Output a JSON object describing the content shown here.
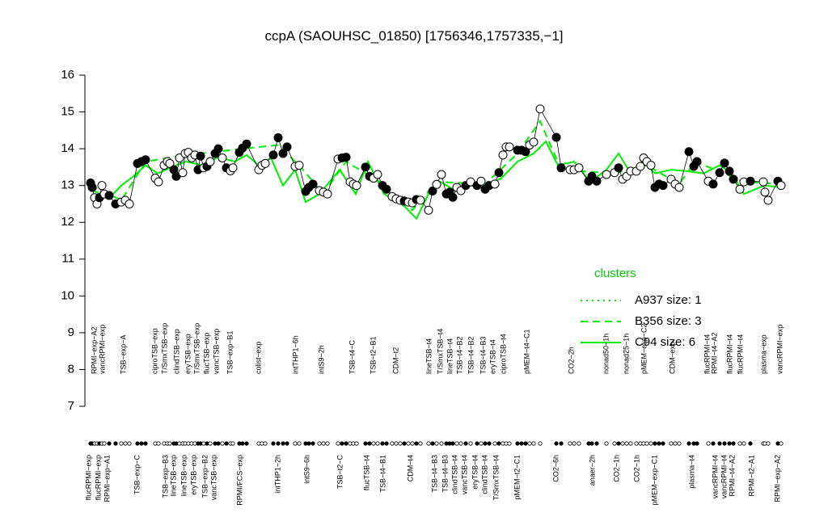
{
  "chart_data": {
    "type": "scatter",
    "title": "ccpA (SAOUHSC_01850) [1756346,1757335,−1]",
    "xlim": [
      0,
      875
    ],
    "ylim": [
      7,
      16
    ],
    "yticks": [
      7,
      8,
      9,
      10,
      11,
      12,
      13,
      14,
      15,
      16
    ],
    "point_color": "#000000",
    "points": [
      {
        "x": 12,
        "y": 13.07,
        "filled": true
      },
      {
        "x": 14,
        "y": 12.95,
        "filled": true
      },
      {
        "x": 17,
        "y": 12.67,
        "filled": false
      },
      {
        "x": 20,
        "y": 12.5,
        "filled": false
      },
      {
        "x": 23,
        "y": 12.67,
        "filled": true
      },
      {
        "x": 26,
        "y": 13.0,
        "filled": false
      },
      {
        "x": 29,
        "y": 12.77,
        "filled": false
      },
      {
        "x": 35,
        "y": 12.73,
        "filled": true
      },
      {
        "x": 43,
        "y": 12.5,
        "filled": true
      },
      {
        "x": 50,
        "y": 12.55,
        "filled": false
      },
      {
        "x": 55,
        "y": 12.6,
        "filled": false
      },
      {
        "x": 60,
        "y": 12.5,
        "filled": false
      },
      {
        "x": 70,
        "y": 13.6,
        "filled": true
      },
      {
        "x": 75,
        "y": 13.65,
        "filled": true
      },
      {
        "x": 80,
        "y": 13.7,
        "filled": true
      },
      {
        "x": 92,
        "y": 13.2,
        "filled": false
      },
      {
        "x": 96,
        "y": 13.1,
        "filled": false
      },
      {
        "x": 103,
        "y": 13.55,
        "filled": false
      },
      {
        "x": 107,
        "y": 13.65,
        "filled": false
      },
      {
        "x": 110,
        "y": 13.6,
        "filled": false
      },
      {
        "x": 115,
        "y": 13.43,
        "filled": true
      },
      {
        "x": 118,
        "y": 13.25,
        "filled": true
      },
      {
        "x": 122,
        "y": 13.75,
        "filled": false
      },
      {
        "x": 126,
        "y": 13.35,
        "filled": false
      },
      {
        "x": 129,
        "y": 13.87,
        "filled": false
      },
      {
        "x": 133,
        "y": 13.9,
        "filled": false
      },
      {
        "x": 137,
        "y": 13.75,
        "filled": false
      },
      {
        "x": 141,
        "y": 13.83,
        "filled": false
      },
      {
        "x": 145,
        "y": 13.43,
        "filled": true
      },
      {
        "x": 148,
        "y": 13.8,
        "filled": true
      },
      {
        "x": 152,
        "y": 13.48,
        "filled": false
      },
      {
        "x": 156,
        "y": 13.52,
        "filled": true
      },
      {
        "x": 160,
        "y": 13.65,
        "filled": false
      },
      {
        "x": 166,
        "y": 13.87,
        "filled": true
      },
      {
        "x": 170,
        "y": 14.0,
        "filled": true
      },
      {
        "x": 175,
        "y": 13.75,
        "filled": false
      },
      {
        "x": 180,
        "y": 13.48,
        "filled": true
      },
      {
        "x": 185,
        "y": 13.4,
        "filled": false
      },
      {
        "x": 188,
        "y": 13.48,
        "filled": false
      },
      {
        "x": 196,
        "y": 13.9,
        "filled": true
      },
      {
        "x": 200,
        "y": 14.02,
        "filled": true
      },
      {
        "x": 205,
        "y": 14.13,
        "filled": true
      },
      {
        "x": 220,
        "y": 13.43,
        "filled": false
      },
      {
        "x": 224,
        "y": 13.55,
        "filled": false
      },
      {
        "x": 228,
        "y": 13.6,
        "filled": false
      },
      {
        "x": 238,
        "y": 13.83,
        "filled": true
      },
      {
        "x": 244,
        "y": 14.3,
        "filled": true
      },
      {
        "x": 250,
        "y": 13.87,
        "filled": true
      },
      {
        "x": 255,
        "y": 14.05,
        "filled": true
      },
      {
        "x": 265,
        "y": 13.52,
        "filled": false
      },
      {
        "x": 270,
        "y": 13.55,
        "filled": false
      },
      {
        "x": 278,
        "y": 12.84,
        "filled": true
      },
      {
        "x": 282,
        "y": 12.95,
        "filled": true
      },
      {
        "x": 287,
        "y": 13.04,
        "filled": true
      },
      {
        "x": 295,
        "y": 12.86,
        "filled": false
      },
      {
        "x": 300,
        "y": 12.82,
        "filled": false
      },
      {
        "x": 305,
        "y": 12.77,
        "filled": false
      },
      {
        "x": 318,
        "y": 13.72,
        "filled": false
      },
      {
        "x": 323,
        "y": 13.75,
        "filled": true
      },
      {
        "x": 328,
        "y": 13.77,
        "filled": true
      },
      {
        "x": 333,
        "y": 13.1,
        "filled": false
      },
      {
        "x": 337,
        "y": 13.04,
        "filled": false
      },
      {
        "x": 341,
        "y": 13.0,
        "filled": false
      },
      {
        "x": 352,
        "y": 13.5,
        "filled": true
      },
      {
        "x": 357,
        "y": 13.25,
        "filled": true
      },
      {
        "x": 362,
        "y": 13.2,
        "filled": false
      },
      {
        "x": 367,
        "y": 13.3,
        "filled": false
      },
      {
        "x": 373,
        "y": 13.0,
        "filled": true
      },
      {
        "x": 378,
        "y": 12.9,
        "filled": true
      },
      {
        "x": 385,
        "y": 12.7,
        "filled": false
      },
      {
        "x": 390,
        "y": 12.64,
        "filled": false
      },
      {
        "x": 395,
        "y": 12.6,
        "filled": false
      },
      {
        "x": 400,
        "y": 12.58,
        "filled": true
      },
      {
        "x": 405,
        "y": 12.55,
        "filled": false
      },
      {
        "x": 410,
        "y": 12.53,
        "filled": false
      },
      {
        "x": 415,
        "y": 12.62,
        "filled": true
      },
      {
        "x": 420,
        "y": 12.6,
        "filled": false
      },
      {
        "x": 430,
        "y": 12.33,
        "filled": false
      },
      {
        "x": 435,
        "y": 12.85,
        "filled": true
      },
      {
        "x": 440,
        "y": 13.03,
        "filled": false
      },
      {
        "x": 446,
        "y": 13.3,
        "filled": false
      },
      {
        "x": 452,
        "y": 12.77,
        "filled": true
      },
      {
        "x": 456,
        "y": 12.82,
        "filled": true
      },
      {
        "x": 460,
        "y": 12.68,
        "filled": true
      },
      {
        "x": 465,
        "y": 12.95,
        "filled": false
      },
      {
        "x": 470,
        "y": 12.86,
        "filled": false
      },
      {
        "x": 476,
        "y": 13.0,
        "filled": true
      },
      {
        "x": 482,
        "y": 13.1,
        "filled": false
      },
      {
        "x": 490,
        "y": 13.0,
        "filled": true
      },
      {
        "x": 495,
        "y": 13.12,
        "filled": false
      },
      {
        "x": 500,
        "y": 12.9,
        "filled": true
      },
      {
        "x": 505,
        "y": 13.0,
        "filled": true
      },
      {
        "x": 512,
        "y": 13.04,
        "filled": false
      },
      {
        "x": 517,
        "y": 13.35,
        "filled": true
      },
      {
        "x": 522,
        "y": 13.83,
        "filled": false
      },
      {
        "x": 526,
        "y": 14.05,
        "filled": false
      },
      {
        "x": 530,
        "y": 14.05,
        "filled": false
      },
      {
        "x": 540,
        "y": 13.96,
        "filled": true
      },
      {
        "x": 545,
        "y": 13.96,
        "filled": true
      },
      {
        "x": 550,
        "y": 13.92,
        "filled": true
      },
      {
        "x": 555,
        "y": 14.1,
        "filled": false
      },
      {
        "x": 560,
        "y": 14.18,
        "filled": false
      },
      {
        "x": 568,
        "y": 15.08,
        "filled": false
      },
      {
        "x": 588,
        "y": 14.31,
        "filled": true
      },
      {
        "x": 594,
        "y": 13.48,
        "filled": true
      },
      {
        "x": 605,
        "y": 13.43,
        "filled": false
      },
      {
        "x": 610,
        "y": 13.43,
        "filled": false
      },
      {
        "x": 616,
        "y": 13.48,
        "filled": false
      },
      {
        "x": 628,
        "y": 13.12,
        "filled": true
      },
      {
        "x": 632,
        "y": 13.25,
        "filled": true
      },
      {
        "x": 638,
        "y": 13.12,
        "filled": true
      },
      {
        "x": 650,
        "y": 13.3,
        "filled": false
      },
      {
        "x": 660,
        "y": 13.35,
        "filled": false
      },
      {
        "x": 665,
        "y": 13.48,
        "filled": true
      },
      {
        "x": 670,
        "y": 13.17,
        "filled": false
      },
      {
        "x": 675,
        "y": 13.25,
        "filled": false
      },
      {
        "x": 680,
        "y": 13.39,
        "filled": false
      },
      {
        "x": 687,
        "y": 13.39,
        "filled": false
      },
      {
        "x": 692,
        "y": 13.52,
        "filled": false
      },
      {
        "x": 696,
        "y": 13.75,
        "filled": false
      },
      {
        "x": 700,
        "y": 13.65,
        "filled": false
      },
      {
        "x": 705,
        "y": 13.55,
        "filled": false
      },
      {
        "x": 710,
        "y": 12.95,
        "filled": true
      },
      {
        "x": 715,
        "y": 13.04,
        "filled": true
      },
      {
        "x": 720,
        "y": 13.0,
        "filled": true
      },
      {
        "x": 730,
        "y": 13.17,
        "filled": false
      },
      {
        "x": 735,
        "y": 13.04,
        "filled": false
      },
      {
        "x": 740,
        "y": 12.95,
        "filled": false
      },
      {
        "x": 752,
        "y": 13.92,
        "filled": true
      },
      {
        "x": 758,
        "y": 13.52,
        "filled": true
      },
      {
        "x": 762,
        "y": 13.65,
        "filled": true
      },
      {
        "x": 776,
        "y": 13.12,
        "filled": false
      },
      {
        "x": 782,
        "y": 13.04,
        "filled": true
      },
      {
        "x": 790,
        "y": 13.35,
        "filled": true
      },
      {
        "x": 796,
        "y": 13.61,
        "filled": true
      },
      {
        "x": 802,
        "y": 13.39,
        "filled": true
      },
      {
        "x": 807,
        "y": 13.17,
        "filled": true
      },
      {
        "x": 815,
        "y": 12.9,
        "filled": false
      },
      {
        "x": 820,
        "y": 13.1,
        "filled": false
      },
      {
        "x": 828,
        "y": 13.12,
        "filled": true
      },
      {
        "x": 844,
        "y": 13.1,
        "filled": false
      },
      {
        "x": 846,
        "y": 12.82,
        "filled": false
      },
      {
        "x": 850,
        "y": 12.6,
        "filled": false
      },
      {
        "x": 862,
        "y": 13.12,
        "filled": true
      },
      {
        "x": 866,
        "y": 13.0,
        "filled": false
      }
    ],
    "legend_title": "clusters",
    "lines": [
      {
        "name": "A937 size: 1",
        "color": "#00ee00",
        "style": "dotted"
      },
      {
        "name": "B356 size: 3",
        "color": "#00ee00",
        "style": "dashed",
        "x": [
          12,
          50,
          80,
          130,
          200,
          244,
          270,
          300,
          328,
          370,
          410,
          440,
          500,
          540,
          568,
          594,
          660,
          700,
          740,
          760,
          820,
          865
        ],
        "y": [
          13.0,
          12.6,
          13.65,
          13.83,
          14.0,
          14.1,
          13.55,
          12.77,
          13.65,
          13.1,
          12.33,
          13.1,
          13.04,
          13.87,
          14.75,
          13.43,
          13.33,
          13.55,
          13.04,
          13.65,
          13.1,
          13.04
        ]
      },
      {
        "name": "C94 size: 6",
        "color": "#00ee00",
        "style": "solid",
        "x": [
          12,
          35,
          50,
          65,
          80,
          95,
          110,
          130,
          150,
          170,
          190,
          205,
          220,
          235,
          250,
          265,
          278,
          295,
          320,
          340,
          355,
          375,
          400,
          415,
          430,
          445,
          460,
          480,
          500,
          520,
          540,
          560,
          575,
          590,
          610,
          630,
          650,
          665,
          680,
          695,
          710,
          730,
          750,
          770,
          790,
          805,
          820,
          845,
          865
        ],
        "y": [
          12.9,
          12.65,
          13.0,
          13.25,
          13.55,
          13.33,
          13.48,
          13.65,
          13.55,
          13.77,
          13.65,
          13.83,
          13.55,
          13.75,
          13.0,
          13.43,
          12.55,
          12.77,
          13.43,
          12.77,
          13.65,
          12.77,
          12.44,
          12.1,
          12.77,
          13.1,
          12.9,
          13.0,
          12.95,
          13.2,
          13.65,
          13.87,
          14.2,
          13.55,
          13.65,
          13.1,
          13.43,
          13.87,
          13.33,
          13.65,
          13.33,
          13.43,
          13.39,
          13.33,
          13.55,
          13.33,
          12.77,
          13.0,
          12.95
        ]
      }
    ],
    "top_labels": [
      {
        "x": 17,
        "text": "RPMI−exp−A2"
      },
      {
        "x": 27,
        "text": "vancRPMI−exp"
      },
      {
        "x": 53,
        "text": "TSB−exp−A"
      },
      {
        "x": 92,
        "text": "ciproTSB−exp"
      },
      {
        "x": 104,
        "text": "T/SmxTSB−exp"
      },
      {
        "x": 119,
        "text": "clindTSB−exp"
      },
      {
        "x": 133,
        "text": "eryTSB−exp"
      },
      {
        "x": 144,
        "text": "T/SmxTSB−exp"
      },
      {
        "x": 156,
        "text": "flucTSB−exp"
      },
      {
        "x": 168,
        "text": "vancTSB−exp"
      },
      {
        "x": 185,
        "text": "TSB−exp−B1"
      },
      {
        "x": 220,
        "text": "colist−exp"
      },
      {
        "x": 266,
        "text": "intTHP1−6h"
      },
      {
        "x": 298,
        "text": "intS9−2h"
      },
      {
        "x": 336,
        "text": "TSB−t4−C"
      },
      {
        "x": 362,
        "text": "TSB−t2−B1"
      },
      {
        "x": 390,
        "text": "CDM−t2"
      },
      {
        "x": 431,
        "text": "lineTSB−t4"
      },
      {
        "x": 445,
        "text": "T/SmxTSB−t4"
      },
      {
        "x": 457,
        "text": "lineTSB−t4"
      },
      {
        "x": 469,
        "text": "TSB−t4−B2"
      },
      {
        "x": 483,
        "text": "TSB−t4−B2"
      },
      {
        "x": 498,
        "text": "TSB−t4−B3"
      },
      {
        "x": 510,
        "text": "eryTSB−t4"
      },
      {
        "x": 523,
        "text": "ciproTSB−t4"
      },
      {
        "x": 552,
        "text": "pMEM−t4−C1"
      },
      {
        "x": 607,
        "text": "CO2−2h"
      },
      {
        "x": 650,
        "text": "nonad50−1h"
      },
      {
        "x": 675,
        "text": "nonad25−1h"
      },
      {
        "x": 697,
        "text": "pMEM−exp−C2"
      },
      {
        "x": 732,
        "text": "CDM−exp"
      },
      {
        "x": 775,
        "text": "flucRPMI−t4"
      },
      {
        "x": 784,
        "text": "RPMI−t4−A2"
      },
      {
        "x": 803,
        "text": "flucRPMI−t4"
      },
      {
        "x": 816,
        "text": "flucRPMI−t4"
      },
      {
        "x": 845,
        "text": "plasma−exp"
      },
      {
        "x": 865,
        "text": "vancRPMI−exp"
      }
    ],
    "bottom_labels": [
      {
        "x": 10,
        "text": "flucRPMI−exp"
      },
      {
        "x": 22,
        "text": "flucRPMI−exp"
      },
      {
        "x": 33,
        "text": "RPMI−exp−A1"
      },
      {
        "x": 70,
        "text": "TSB−exp−C"
      },
      {
        "x": 105,
        "text": "TSB−exp−B3"
      },
      {
        "x": 115,
        "text": "lineTSB−exp"
      },
      {
        "x": 128,
        "text": "lineTSB−exp"
      },
      {
        "x": 140,
        "text": "eryTSB−exp"
      },
      {
        "x": 154,
        "text": "TSB−exp−B2"
      },
      {
        "x": 165,
        "text": "vancTSB−exp"
      },
      {
        "x": 197,
        "text": "RPMI/FCS−exp"
      },
      {
        "x": 244,
        "text": "intTHP1−2h"
      },
      {
        "x": 280,
        "text": "intS9−6h"
      },
      {
        "x": 321,
        "text": "TSB−t2−C"
      },
      {
        "x": 354,
        "text": "flucTSB−t4"
      },
      {
        "x": 374,
        "text": "TSB−t4−B1"
      },
      {
        "x": 408,
        "text": "CDM−t4"
      },
      {
        "x": 438,
        "text": "TSB−t4−B3"
      },
      {
        "x": 451,
        "text": "TSB−t4−B3"
      },
      {
        "x": 463,
        "text": "clindTSB−t4"
      },
      {
        "x": 475,
        "text": "vancTSB−t4"
      },
      {
        "x": 488,
        "text": "eryTSB−t4"
      },
      {
        "x": 500,
        "text": "clindTSB−t4"
      },
      {
        "x": 514,
        "text": "T/SmxTSB−t4"
      },
      {
        "x": 540,
        "text": "pMEM−t2−C1"
      },
      {
        "x": 588,
        "text": "CO2−6h"
      },
      {
        "x": 633,
        "text": "anaer−2h"
      },
      {
        "x": 663,
        "text": "CO2−1h"
      },
      {
        "x": 688,
        "text": "CO2−1h"
      },
      {
        "x": 710,
        "text": "pMEM−exp−C1"
      },
      {
        "x": 756,
        "text": "plasma−t4"
      },
      {
        "x": 785,
        "text": "vancRPMI−t4"
      },
      {
        "x": 796,
        "text": "vancRPMI−t4"
      },
      {
        "x": 806,
        "text": "RPMI−t4−A2"
      },
      {
        "x": 830,
        "text": "RPMI−t2−A1"
      },
      {
        "x": 862,
        "text": "RPMI−exp−A2"
      }
    ]
  }
}
